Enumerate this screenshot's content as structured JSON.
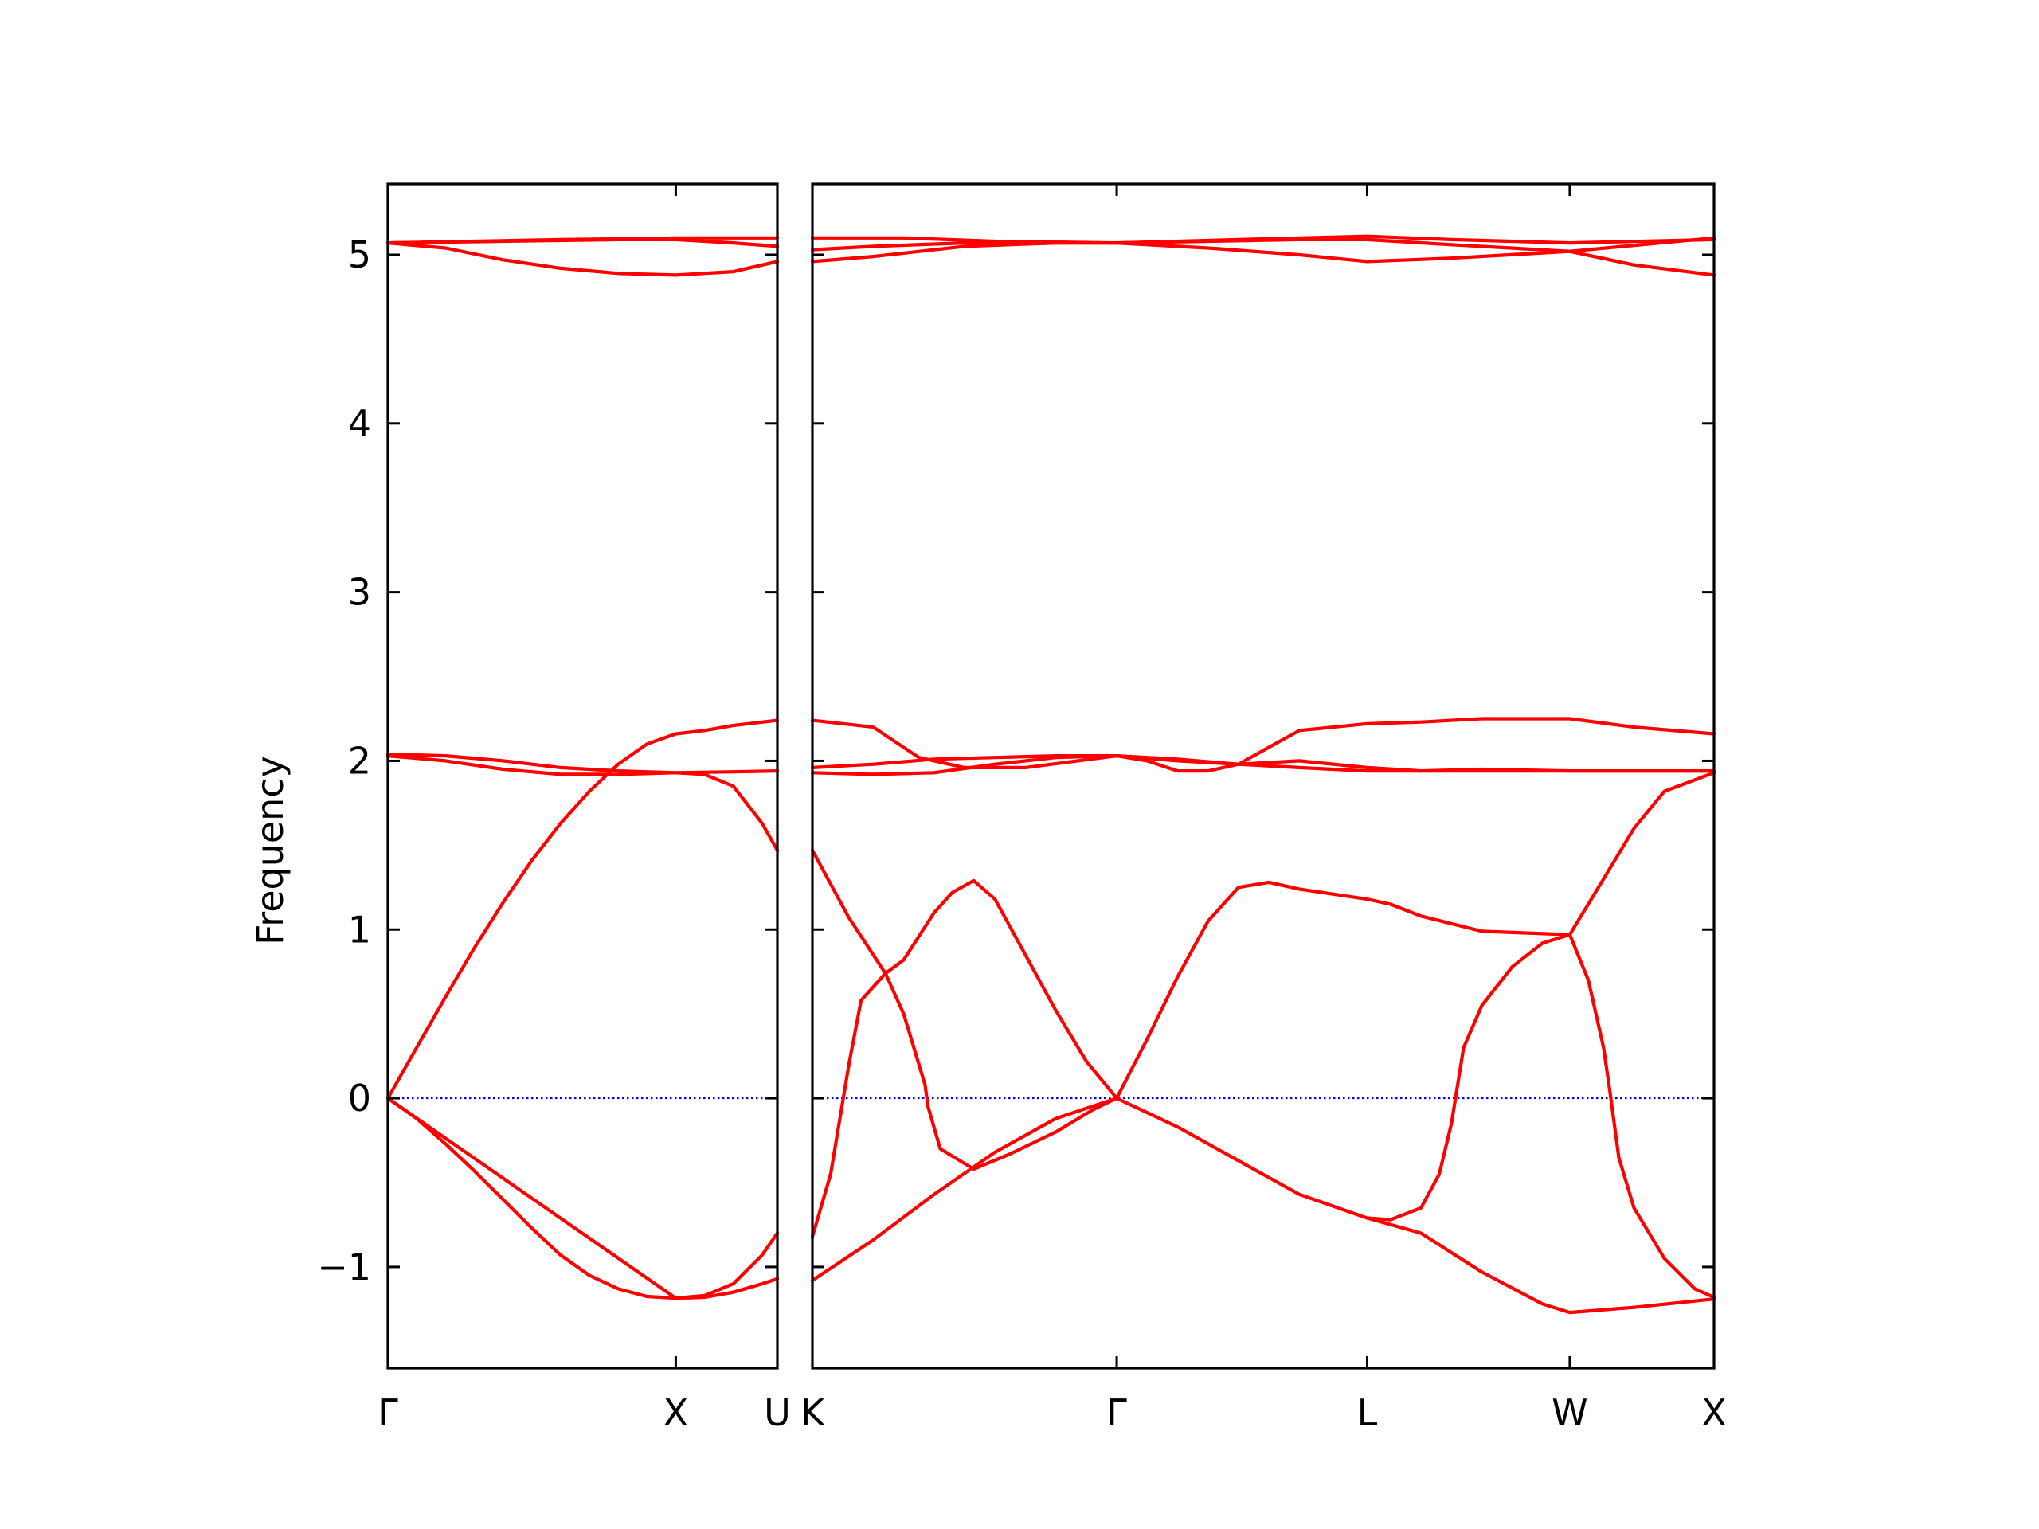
{
  "chart_data": {
    "type": "line",
    "title": "",
    "ylabel": "Frequency",
    "ylim": [
      -1.6,
      5.42
    ],
    "yticks": [
      -1,
      0,
      1,
      2,
      3,
      4,
      5
    ],
    "ytick_labels": [
      "−1",
      "0",
      "1",
      "2",
      "3",
      "4",
      "5"
    ],
    "grid": false,
    "line_color": "#ff0000",
    "zero_line_color": "#0000ff",
    "zero_line": 0,
    "panels": [
      {
        "id": "left",
        "xlim": [
          0,
          1.353
        ],
        "ticks": [
          {
            "x": 0,
            "label": "Γ"
          },
          {
            "x": 1.0,
            "label": "X"
          },
          {
            "x": 1.353,
            "label": "U"
          }
        ],
        "bands": [
          [
            [
              0,
              0
            ],
            [
              0.1,
              -0.12
            ],
            [
              0.2,
              -0.27
            ],
            [
              0.3,
              -0.43
            ],
            [
              0.4,
              -0.6
            ],
            [
              0.5,
              -0.77
            ],
            [
              0.6,
              -0.93
            ],
            [
              0.7,
              -1.05
            ],
            [
              0.8,
              -1.13
            ],
            [
              0.9,
              -1.175
            ],
            [
              1.0,
              -1.185
            ],
            [
              1.1,
              -1.17
            ],
            [
              1.2,
              -1.1
            ],
            [
              1.3,
              -0.93
            ],
            [
              1.353,
              -0.8
            ]
          ],
          [
            [
              0,
              0
            ],
            [
              1.0,
              -1.185
            ],
            [
              1.1,
              -1.18
            ],
            [
              1.2,
              -1.15
            ],
            [
              1.3,
              -1.1
            ],
            [
              1.353,
              -1.07
            ]
          ],
          [
            [
              0,
              0
            ],
            [
              0.1,
              0.3
            ],
            [
              0.2,
              0.6
            ],
            [
              0.3,
              0.89
            ],
            [
              0.4,
              1.16
            ],
            [
              0.5,
              1.41
            ],
            [
              0.6,
              1.63
            ],
            [
              0.7,
              1.82
            ],
            [
              0.8,
              1.98
            ],
            [
              0.9,
              2.1
            ],
            [
              1.0,
              2.16
            ],
            [
              1.1,
              2.18
            ],
            [
              1.2,
              2.21
            ],
            [
              1.353,
              2.24
            ]
          ],
          [
            [
              0,
              2.04
            ],
            [
              0.2,
              2.03
            ],
            [
              0.4,
              2.0
            ],
            [
              0.6,
              1.96
            ],
            [
              0.8,
              1.94
            ],
            [
              1.0,
              1.93
            ],
            [
              1.1,
              1.92
            ],
            [
              1.2,
              1.85
            ],
            [
              1.3,
              1.63
            ],
            [
              1.353,
              1.47
            ]
          ],
          [
            [
              0,
              2.03
            ],
            [
              0.2,
              2.0
            ],
            [
              0.4,
              1.95
            ],
            [
              0.6,
              1.92
            ],
            [
              0.8,
              1.92
            ],
            [
              1.0,
              1.93
            ],
            [
              1.2,
              1.935
            ],
            [
              1.353,
              1.94
            ]
          ],
          [
            [
              0,
              5.07
            ],
            [
              0.2,
              5.04
            ],
            [
              0.4,
              4.97
            ],
            [
              0.6,
              4.92
            ],
            [
              0.8,
              4.89
            ],
            [
              1.0,
              4.88
            ],
            [
              1.2,
              4.9
            ],
            [
              1.353,
              4.96
            ]
          ],
          [
            [
              0,
              5.07
            ],
            [
              0.3,
              5.08
            ],
            [
              0.6,
              5.09
            ],
            [
              1.0,
              5.1
            ],
            [
              1.353,
              5.1
            ]
          ],
          [
            [
              0,
              5.07
            ],
            [
              0.4,
              5.08
            ],
            [
              0.8,
              5.09
            ],
            [
              1.0,
              5.09
            ],
            [
              1.2,
              5.07
            ],
            [
              1.353,
              5.05
            ]
          ]
        ]
      },
      {
        "id": "right",
        "xlim": [
          0,
          2.963
        ],
        "ticks": [
          {
            "x": 0,
            "label": "K"
          },
          {
            "x": 1.0,
            "label": "Γ"
          },
          {
            "x": 0.823,
            "label": "L",
            "offset": 1.0
          },
          {
            "x": 0.666,
            "label": "W",
            "offset": 1.823
          },
          {
            "x": 0.474,
            "label": "X",
            "offset": 2.489
          }
        ],
        "tick_positions": [
          0,
          1.0,
          1.823,
          2.489,
          2.963
        ],
        "bands": [
          [
            [
              0,
              -1.08
            ],
            [
              0.2,
              -0.84
            ],
            [
              0.4,
              -0.57
            ],
            [
              0.6,
              -0.32
            ],
            [
              0.8,
              -0.12
            ],
            [
              1.0,
              0
            ]
          ],
          [
            [
              0,
              -0.82
            ],
            [
              0.06,
              -0.45
            ],
            [
              0.12,
              0.2
            ],
            [
              0.16,
              0.58
            ],
            [
              0.24,
              0.74
            ],
            [
              0.3,
              0.82
            ],
            [
              0.4,
              1.1
            ],
            [
              0.46,
              1.22
            ],
            [
              0.53,
              1.29
            ],
            [
              0.6,
              1.18
            ],
            [
              0.7,
              0.85
            ],
            [
              0.8,
              0.52
            ],
            [
              0.9,
              0.22
            ],
            [
              1.0,
              0
            ]
          ],
          [
            [
              0,
              1.47
            ],
            [
              0.12,
              1.07
            ],
            [
              0.24,
              0.74
            ],
            [
              0.3,
              0.5
            ],
            [
              0.37,
              0.08
            ],
            [
              0.38,
              -0.05
            ],
            [
              0.42,
              -0.3
            ],
            [
              0.53,
              -0.42
            ],
            [
              0.65,
              -0.33
            ],
            [
              0.8,
              -0.2
            ],
            [
              0.92,
              -0.07
            ],
            [
              1.0,
              0
            ]
          ],
          [
            [
              0,
              1.93
            ],
            [
              0.2,
              1.92
            ],
            [
              0.4,
              1.93
            ],
            [
              0.6,
              1.98
            ],
            [
              0.8,
              2.02
            ],
            [
              1.0,
              2.03
            ],
            [
              1.1,
              2.0
            ],
            [
              1.2,
              1.94
            ],
            [
              1.3,
              1.94
            ],
            [
              1.4,
              1.98
            ],
            [
              1.6,
              2.0
            ],
            [
              1.823,
              1.96
            ],
            [
              2.0,
              1.94
            ],
            [
              2.2,
              1.94
            ],
            [
              2.489,
              1.94
            ],
            [
              2.7,
              1.94
            ],
            [
              2.963,
              1.94
            ]
          ],
          [
            [
              0,
              1.96
            ],
            [
              0.2,
              1.98
            ],
            [
              0.4,
              2.01
            ],
            [
              0.6,
              2.02
            ],
            [
              0.8,
              2.03
            ],
            [
              1.0,
              2.03
            ],
            [
              1.2,
              2.01
            ],
            [
              1.4,
              1.98
            ],
            [
              1.6,
              1.96
            ],
            [
              1.823,
              1.94
            ],
            [
              2.0,
              1.94
            ],
            [
              2.2,
              1.95
            ],
            [
              2.489,
              1.94
            ],
            [
              2.963,
              1.94
            ]
          ],
          [
            [
              0,
              2.24
            ],
            [
              0.2,
              2.2
            ],
            [
              0.35,
              2.02
            ],
            [
              0.5,
              1.96
            ],
            [
              0.7,
              1.96
            ],
            [
              1.0,
              2.03
            ],
            [
              1.2,
              2.0
            ],
            [
              1.4,
              1.98
            ],
            [
              1.5,
              2.08
            ],
            [
              1.6,
              2.18
            ],
            [
              1.823,
              2.22
            ],
            [
              2.0,
              2.23
            ],
            [
              2.2,
              2.25
            ],
            [
              2.489,
              2.25
            ],
            [
              2.7,
              2.2
            ],
            [
              2.963,
              2.16
            ]
          ],
          [
            [
              1.0,
              0
            ],
            [
              1.2,
              -0.17
            ],
            [
              1.4,
              -0.37
            ],
            [
              1.6,
              -0.57
            ],
            [
              1.823,
              -0.71
            ],
            [
              1.9,
              -0.72
            ],
            [
              2.0,
              -0.65
            ],
            [
              2.06,
              -0.45
            ],
            [
              2.1,
              -0.15
            ],
            [
              2.14,
              0.3
            ],
            [
              2.2,
              0.55
            ],
            [
              2.3,
              0.78
            ],
            [
              2.4,
              0.92
            ],
            [
              2.489,
              0.97
            ]
          ],
          [
            [
              1.0,
              0
            ],
            [
              1.1,
              0.35
            ],
            [
              1.2,
              0.72
            ],
            [
              1.3,
              1.05
            ],
            [
              1.4,
              1.25
            ],
            [
              1.5,
              1.28
            ],
            [
              1.6,
              1.24
            ],
            [
              1.823,
              1.18
            ],
            [
              1.9,
              1.15
            ],
            [
              2.0,
              1.08
            ],
            [
              2.2,
              0.99
            ],
            [
              2.489,
              0.97
            ],
            [
              2.6,
              1.3
            ],
            [
              2.7,
              1.6
            ],
            [
              2.8,
              1.82
            ],
            [
              2.963,
              1.93
            ]
          ],
          [
            [
              1.823,
              -0.71
            ],
            [
              2.0,
              -0.8
            ],
            [
              2.2,
              -1.03
            ],
            [
              2.4,
              -1.22
            ],
            [
              2.489,
              -1.27
            ],
            [
              2.7,
              -1.24
            ],
            [
              2.963,
              -1.19
            ]
          ],
          [
            [
              2.489,
              0.97
            ],
            [
              2.55,
              0.7
            ],
            [
              2.6,
              0.3
            ],
            [
              2.62,
              0.05
            ],
            [
              2.65,
              -0.35
            ],
            [
              2.7,
              -0.65
            ],
            [
              2.8,
              -0.95
            ],
            [
              2.9,
              -1.13
            ],
            [
              2.963,
              -1.18
            ]
          ],
          [
            [
              0,
              4.96
            ],
            [
              0.2,
              4.99
            ],
            [
              0.5,
              5.05
            ],
            [
              0.8,
              5.07
            ],
            [
              1.0,
              5.07
            ],
            [
              1.3,
              5.04
            ],
            [
              1.6,
              5.0
            ],
            [
              1.823,
              4.96
            ],
            [
              2.1,
              4.98
            ],
            [
              2.489,
              5.02
            ],
            [
              2.963,
              5.1
            ]
          ],
          [
            [
              0,
              5.03
            ],
            [
              0.2,
              5.05
            ],
            [
              0.5,
              5.07
            ],
            [
              0.8,
              5.07
            ],
            [
              1.0,
              5.07
            ],
            [
              1.3,
              5.08
            ],
            [
              1.6,
              5.09
            ],
            [
              1.823,
              5.09
            ],
            [
              2.1,
              5.06
            ],
            [
              2.489,
              5.02
            ],
            [
              2.7,
              4.94
            ],
            [
              2.963,
              4.88
            ]
          ],
          [
            [
              0,
              5.1
            ],
            [
              0.3,
              5.1
            ],
            [
              0.6,
              5.08
            ],
            [
              1.0,
              5.07
            ],
            [
              1.4,
              5.09
            ],
            [
              1.823,
              5.11
            ],
            [
              2.1,
              5.09
            ],
            [
              2.489,
              5.07
            ],
            [
              2.963,
              5.09
            ]
          ]
        ]
      }
    ]
  }
}
